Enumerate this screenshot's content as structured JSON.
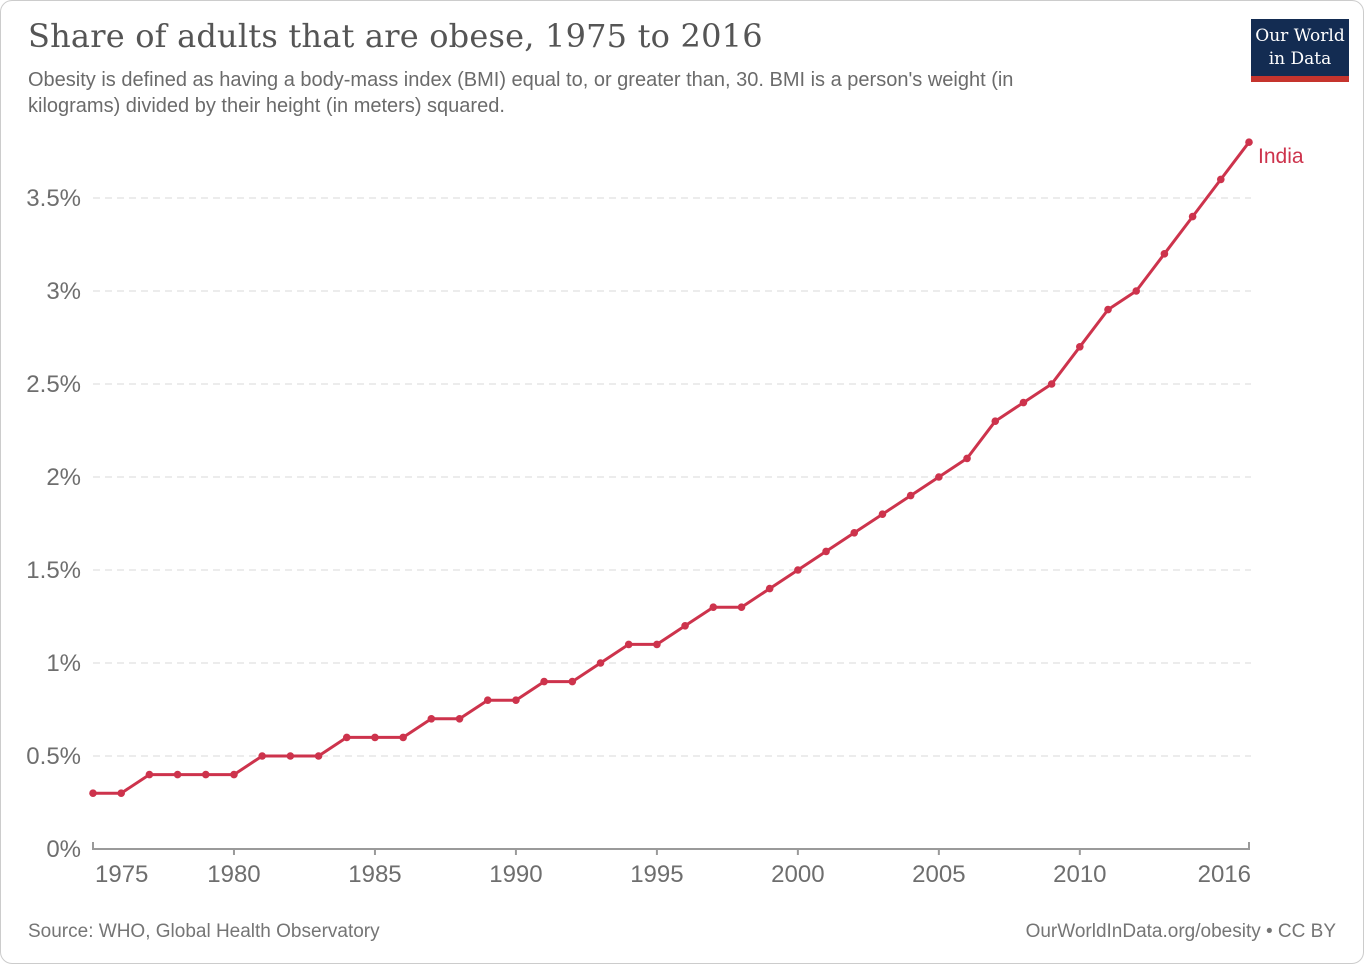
{
  "header": {
    "title": "Share of adults that are obese, 1975 to 2016",
    "subtitle_lines": [
      "Obesity is defined as having a body-mass index (BMI) equal to, or greater than, 30. BMI is a person's weight (in",
      "kilograms) divided by their height (in meters) squared."
    ],
    "logo": {
      "line1": "Our World",
      "line2": "in Data"
    }
  },
  "footer": {
    "source": "Source: WHO, Global Health Observatory",
    "credit": "OurWorldInData.org/obesity • CC BY"
  },
  "colors": {
    "line": "#cd334c",
    "grid": "#dadada",
    "axis": "#9a9a9a",
    "title_text": "#555555",
    "subtitle_text": "#6b6b6b",
    "tick_text": "#6e6e6e",
    "footer_text": "#757575",
    "logo_bg": "#132c52",
    "logo_bar": "#c5342d"
  },
  "chart_data": {
    "type": "line",
    "title": "Share of adults that are obese, 1975 to 2016",
    "xlabel": "",
    "ylabel": "",
    "grid": "horizontal-dashed",
    "legend": "end-of-line-label",
    "ylim": [
      0,
      3.9
    ],
    "yticks": [
      0,
      0.5,
      1,
      1.5,
      2,
      2.5,
      3,
      3.5
    ],
    "ytick_labels": [
      "0%",
      "0.5%",
      "1%",
      "1.5%",
      "2%",
      "2.5%",
      "3%",
      "3.5%"
    ],
    "xticks": [
      1975,
      1980,
      1985,
      1990,
      1995,
      2000,
      2005,
      2010,
      2016
    ],
    "x": [
      1975,
      1976,
      1977,
      1978,
      1979,
      1980,
      1981,
      1982,
      1983,
      1984,
      1985,
      1986,
      1987,
      1988,
      1989,
      1990,
      1991,
      1992,
      1993,
      1994,
      1995,
      1996,
      1997,
      1998,
      1999,
      2000,
      2001,
      2002,
      2003,
      2004,
      2005,
      2006,
      2007,
      2008,
      2009,
      2010,
      2011,
      2012,
      2013,
      2014,
      2015,
      2016
    ],
    "series": [
      {
        "name": "India",
        "color": "#cd334c",
        "values": [
          0.3,
          0.3,
          0.4,
          0.4,
          0.4,
          0.4,
          0.5,
          0.5,
          0.5,
          0.6,
          0.6,
          0.6,
          0.7,
          0.7,
          0.8,
          0.8,
          0.9,
          0.9,
          1.0,
          1.1,
          1.1,
          1.2,
          1.3,
          1.3,
          1.4,
          1.5,
          1.6,
          1.7,
          1.8,
          1.9,
          2.0,
          2.1,
          2.3,
          2.4,
          2.5,
          2.7,
          2.9,
          3.0,
          3.2,
          3.4,
          3.6,
          3.8
        ]
      }
    ]
  }
}
